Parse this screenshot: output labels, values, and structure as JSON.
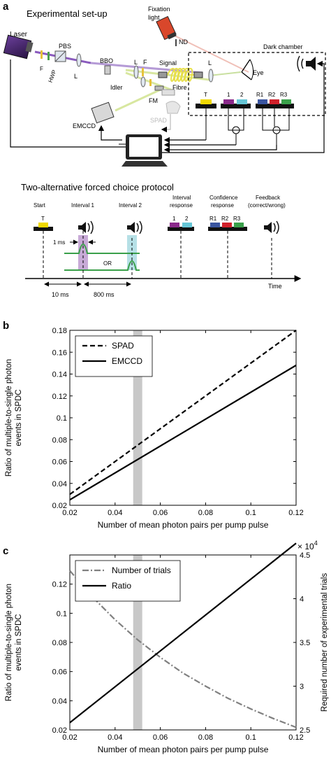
{
  "panel_a": {
    "label": "a",
    "title": "Experimental set-up",
    "components": {
      "laser": "Laser",
      "fixation": [
        "Fixation",
        "light"
      ],
      "nd": "ND",
      "dark_chamber": "Dark chamber",
      "pbs": "PBS",
      "hwp": "HWP",
      "f_left": "F",
      "l_left": "L",
      "bbo": "BBO",
      "l_mid": "L",
      "f_mid": "F",
      "signal": "Signal",
      "fibre": "Fibre",
      "l_right": "L",
      "eye": "Eye",
      "idler": "Idler",
      "fm": "FM",
      "emccd": "EMCCD",
      "spad": "SPAD"
    },
    "buttons": {
      "t": "T",
      "b1": "1",
      "b2": "2",
      "r1": "R1",
      "r2": "R2",
      "r3": "R3"
    },
    "colors": {
      "laser": "#3b1f5c",
      "t": "#f0d800",
      "b1": "#8b2a8b",
      "b2": "#66c6d6",
      "r1": "#3a55a0",
      "r2": "#d0202a",
      "r3": "#3aa04a",
      "fixation": "#d9472b"
    },
    "protocol": {
      "title": "Two-alternative forced choice protocol",
      "start": "Start",
      "start_key": "T",
      "interval1": "Interval 1",
      "interval2": "Interval 2",
      "interval_response": [
        "Interval",
        "response"
      ],
      "interval_keys": [
        "1",
        "2"
      ],
      "confidence_response": [
        "Confidence",
        "response"
      ],
      "confidence_keys": [
        "R1",
        "R2",
        "R3"
      ],
      "feedback": [
        "Feedback",
        "(correct/wrong)"
      ],
      "one_ms": "1 ms",
      "or": "OR",
      "ten_ms": "10 ms",
      "eight_hundred_ms": "800 ms",
      "time": "Time"
    }
  },
  "panel_b": {
    "label": "b",
    "chart_data": {
      "type": "line",
      "xlabel": "Number of mean photon pairs per pump pulse",
      "ylabel": [
        "Ratio of multiple-to-single photon",
        "events in SPDC"
      ],
      "xlim": [
        0.02,
        0.12
      ],
      "ylim": [
        0.02,
        0.18
      ],
      "xticks": [
        "0.02",
        "0.04",
        "0.06",
        "0.08",
        "0.1",
        "0.12"
      ],
      "yticks": [
        "0.02",
        "0.04",
        "0.06",
        "0.08",
        "0.1",
        "0.12",
        "0.14",
        "0.16",
        "0.18"
      ],
      "legend_position": "top-left",
      "highlight_band_x": [
        0.048,
        0.052
      ],
      "series": [
        {
          "name": "SPAD",
          "style": "dashed",
          "x": [
            0.02,
            0.12
          ],
          "y": [
            0.03,
            0.18
          ]
        },
        {
          "name": "EMCCD",
          "style": "solid",
          "x": [
            0.02,
            0.12
          ],
          "y": [
            0.025,
            0.148
          ]
        }
      ]
    }
  },
  "panel_c": {
    "label": "c",
    "chart_data": {
      "type": "line",
      "xlabel": "Number of mean photon pairs per pump pulse",
      "ylabel_left": [
        "Ratio of multiple-to-single photon",
        "events in SPDC"
      ],
      "ylabel_right": "Required number of experimental trials",
      "exponent_label": "× 10",
      "exponent_power": "4",
      "xlim": [
        0.02,
        0.12
      ],
      "ylim_left": [
        0.02,
        0.14
      ],
      "ylim_right": [
        2.5,
        4.5
      ],
      "xticks": [
        "0.02",
        "0.04",
        "0.06",
        "0.08",
        "0.1",
        "0.12"
      ],
      "yticks_left": [
        "0.02",
        "0.04",
        "0.06",
        "0.08",
        "0.1",
        "0.12"
      ],
      "yticks_right": [
        "2.5",
        "3",
        "3.5",
        "4",
        "4.5"
      ],
      "legend_position": "top-left",
      "highlight_band_x": [
        0.048,
        0.052
      ],
      "series": [
        {
          "name": "Number of trials",
          "style": "dashdot",
          "axis": "right",
          "color": "#808080",
          "x": [
            0.02,
            0.03,
            0.04,
            0.05,
            0.06,
            0.07,
            0.08,
            0.09,
            0.1,
            0.11,
            0.12
          ],
          "y": [
            4.32,
            4.02,
            3.76,
            3.53,
            3.33,
            3.15,
            3.0,
            2.86,
            2.74,
            2.63,
            2.53
          ]
        },
        {
          "name": "Ratio",
          "style": "solid",
          "axis": "left",
          "color": "#000000",
          "x": [
            0.02,
            0.12
          ],
          "y": [
            0.025,
            0.148
          ]
        }
      ]
    }
  }
}
